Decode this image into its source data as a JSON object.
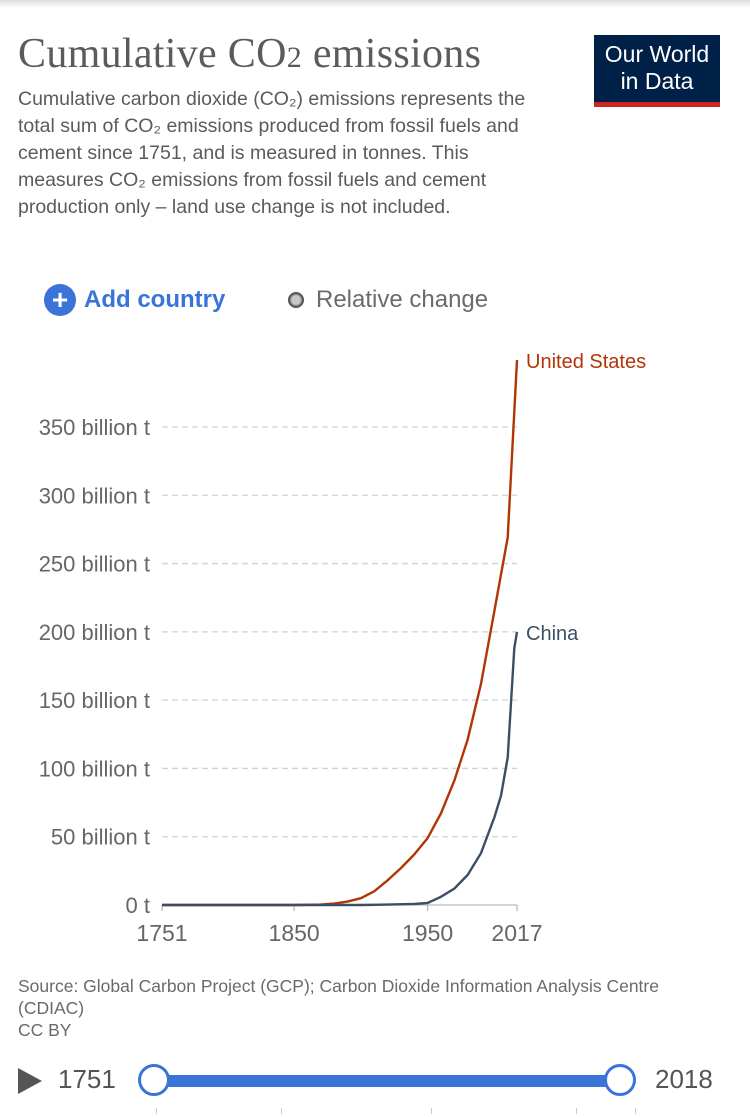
{
  "header": {
    "title_main": "Cumulative CO",
    "title_sub": "2",
    "title_end": " emissions",
    "logo_line1": "Our World",
    "logo_line2": "in Data",
    "subtitle": "Cumulative carbon dioxide (CO₂) emissions represents the total sum of CO₂ emissions produced from fossil fuels and cement since 1751, and is measured in tonnes. This measures CO₂ emissions from fossil fuels and cement production only – land use change is not included."
  },
  "controls": {
    "add_country": "Add country",
    "relative_change": "Relative change"
  },
  "colors": {
    "united_states": "#b13507",
    "china": "#3c4e66",
    "accent": "#3a74d8",
    "brand": "#002147",
    "brand_stripe": "#ce261e"
  },
  "chart_data": {
    "type": "line",
    "title": "Cumulative CO₂ emissions",
    "xlabel": "",
    "ylabel": "",
    "xlim": [
      1751,
      2017
    ],
    "ylim": [
      0,
      400
    ],
    "x_ticks": [
      1751,
      1850,
      1950,
      2017
    ],
    "y_ticks": [
      0,
      50,
      100,
      150,
      200,
      250,
      300,
      350
    ],
    "y_tick_labels": [
      "0 t",
      "50 billion t",
      "100 billion t",
      "150 billion t",
      "200 billion t",
      "250 billion t",
      "300 billion t",
      "350 billion t"
    ],
    "grid": true,
    "series": [
      {
        "name": "United States",
        "color": "#b13507",
        "x": [
          1751,
          1800,
          1850,
          1870,
          1880,
          1890,
          1900,
          1910,
          1920,
          1930,
          1940,
          1950,
          1960,
          1970,
          1980,
          1990,
          2000,
          2010,
          2017
        ],
        "values": [
          0,
          0,
          0,
          0.3,
          1,
          2.5,
          5,
          10,
          18,
          27,
          37,
          49,
          67,
          91,
          121,
          162,
          215,
          269,
          399
        ]
      },
      {
        "name": "China",
        "color": "#3c4e66",
        "x": [
          1751,
          1850,
          1900,
          1920,
          1940,
          1950,
          1960,
          1970,
          1980,
          1990,
          2000,
          2005,
          2010,
          2015,
          2017
        ],
        "values": [
          0,
          0,
          0,
          0.3,
          0.8,
          1.5,
          6,
          12,
          22,
          38,
          64,
          80,
          108,
          188,
          200
        ]
      }
    ]
  },
  "footer": {
    "source": "Source: Global Carbon Project (GCP); Carbon Dioxide Information Analysis Centre (CDIAC)",
    "license": "CC BY"
  },
  "timeline": {
    "start_year": "1751",
    "end_year": "2018"
  }
}
